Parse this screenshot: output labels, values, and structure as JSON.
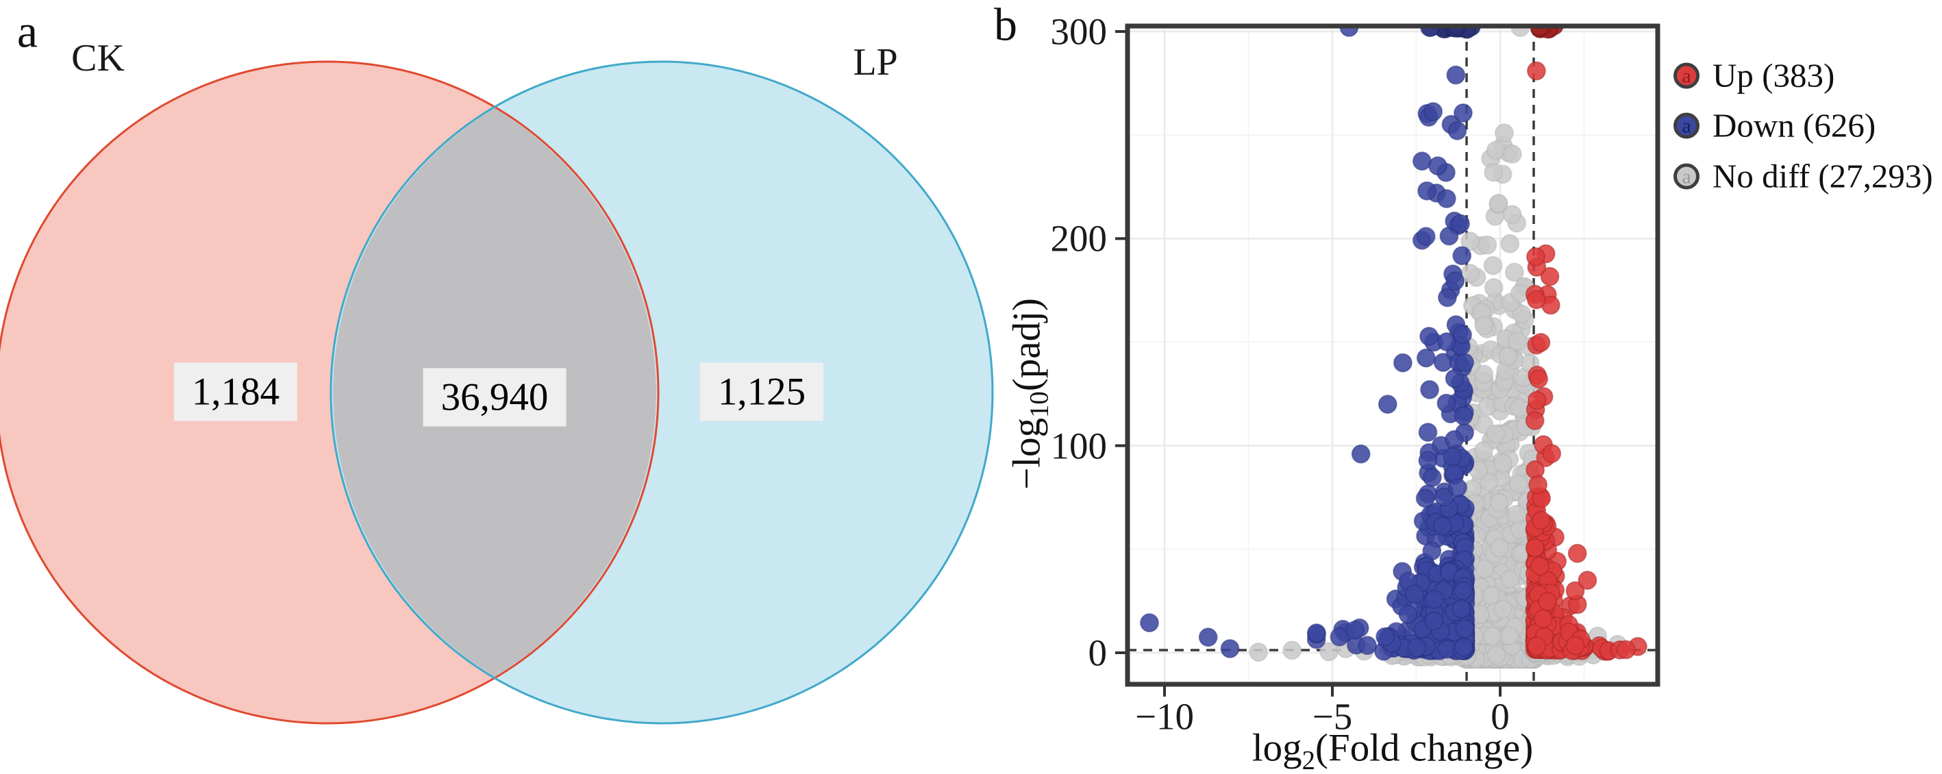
{
  "panels": {
    "a": "a",
    "b": "b"
  },
  "chart_data": [
    {
      "type": "venn",
      "sets": [
        {
          "label": "CK",
          "unique": "1,184"
        },
        {
          "label": "LP",
          "unique": "1,125"
        }
      ],
      "overlap": "36,940",
      "colors": {
        "left_fill": "#f7c7c0",
        "left_stroke": "#e0492f",
        "right_fill": "#c9e8f2",
        "right_stroke": "#41a9ca",
        "overlap_fill": "#bfbfc1",
        "value_box_bg": "#efefef"
      }
    },
    {
      "type": "scatter",
      "subtype": "volcano",
      "xlabel_parts": [
        "log",
        "2",
        "(Fold change)"
      ],
      "ylabel_parts": [
        "−log",
        "10",
        "(padj)"
      ],
      "xlim": [
        -11.1,
        4.7
      ],
      "ylim": [
        -15,
        303
      ],
      "x_ticks": [
        {
          "v": -10,
          "label": "−10"
        },
        {
          "v": -5,
          "label": "−5"
        },
        {
          "v": 0,
          "label": "0"
        }
      ],
      "y_ticks": [
        {
          "v": 0,
          "label": "0"
        },
        {
          "v": 100,
          "label": "100"
        },
        {
          "v": 200,
          "label": "200"
        },
        {
          "v": 300,
          "label": "300"
        }
      ],
      "grid": {
        "x_major": [
          -10,
          -5,
          0
        ],
        "x_minor": [
          -7.5,
          -2.5,
          2.5
        ],
        "y_major": [
          0,
          100,
          200,
          300
        ],
        "y_minor": [
          50,
          150,
          250
        ]
      },
      "thresholds": {
        "vlines": [
          -1,
          1
        ],
        "hline": 1.3
      },
      "legend": [
        {
          "key": "up",
          "label": "Up (383)"
        },
        {
          "key": "down",
          "label": "Down (626)"
        },
        {
          "key": "nodiff",
          "label": "No diff (27,293)"
        }
      ],
      "series_colors": {
        "up": {
          "fill": "#dd3c3c",
          "stroke": "#a32222",
          "legend_a": "#8f1d1d"
        },
        "down": {
          "fill": "#3c47a0",
          "stroke": "#262f7d",
          "legend_a": "#141f5e"
        },
        "nodiff": {
          "fill": "#c9c9c9",
          "stroke": "#b3b3b3",
          "legend_a": "#9b9b9b"
        }
      },
      "points": {
        "seed": 12,
        "radius": 13,
        "clusters": [
          {
            "s": "nodiff",
            "n": 1400,
            "x": [
              -1.03,
              1.03,
              "uni",
              1
            ],
            "y": [
              -3,
              11,
              "lo",
              2.3
            ]
          },
          {
            "s": "nodiff",
            "n": 330,
            "x": [
              -1.0,
              1.0,
              "uni",
              1
            ],
            "y": [
              8,
              130,
              "lo",
              2.0
            ]
          },
          {
            "s": "nodiff",
            "n": 60,
            "x": [
              -0.95,
              0.97,
              "uni",
              1
            ],
            "y": [
              130,
              215,
              "lo",
              1.5
            ]
          },
          {
            "s": "nodiff",
            "n": 8,
            "x": [
              -0.75,
              0.8,
              "uni",
              1
            ],
            "y": [
              215,
              252,
              "uni",
              1
            ]
          },
          {
            "s": "nodiff",
            "n": 60,
            "x": [
              -3.4,
              -1.0,
              "hi",
              2.2
            ],
            "y": [
              -2,
              5,
              "lo",
              1.8
            ]
          },
          {
            "s": "nodiff",
            "n": 40,
            "x": [
              1.0,
              3.0,
              "lo",
              2.2
            ],
            "y": [
              -2,
              5,
              "lo",
              1.8
            ]
          },
          {
            "s": "down",
            "n": 210,
            "x": [
              -2.3,
              -1.03,
              "hi",
              2.2
            ],
            "y": [
              1.5,
              70,
              "lo",
              2.2
            ]
          },
          {
            "s": "down",
            "n": 110,
            "x": [
              -3.3,
              -1.05,
              "hi",
              2.0
            ],
            "y": [
              1,
              40,
              "lo",
              2.0
            ]
          },
          {
            "s": "down",
            "n": 16,
            "x": [
              -5.6,
              -3.2,
              "hi",
              1.3
            ],
            "y": [
              0.5,
              14,
              "lo",
              1.8
            ]
          },
          {
            "s": "down",
            "n": 60,
            "x": [
              -2.3,
              -1.05,
              "hi",
              1.9
            ],
            "y": [
              60,
              155,
              "lo",
              1.5
            ]
          },
          {
            "s": "down",
            "n": 26,
            "x": [
              -2.4,
              -1.1,
              "hi",
              1.8
            ],
            "y": [
              150,
              262,
              "uni",
              1
            ]
          },
          {
            "s": "down",
            "n": 22,
            "x": [
              -1.7,
              -0.85,
              "uni",
              1
            ],
            "y": [
              301,
              303,
              "uni",
              1
            ],
            "fill": "#2c3376",
            "stroke": "#1b2258"
          },
          {
            "s": "down",
            "n": 2,
            "x": [
              -2.1,
              -1.9,
              "uni",
              1
            ],
            "y": [
              301,
              303,
              "uni",
              1
            ],
            "fill": "#343c88",
            "stroke": "#1b2258"
          },
          {
            "s": "up",
            "n": 120,
            "x": [
              1.03,
              1.7,
              "lo",
              2.2
            ],
            "y": [
              1.5,
              65,
              "lo",
              2.2
            ]
          },
          {
            "s": "up",
            "n": 70,
            "x": [
              1.05,
              2.6,
              "lo",
              1.8
            ],
            "y": [
              1,
              30,
              "lo",
              1.9
            ]
          },
          {
            "s": "up",
            "n": 18,
            "x": [
              1.8,
              3.7,
              "lo",
              1.4
            ],
            "y": [
              0.5,
              10,
              "lo",
              1.8
            ]
          },
          {
            "s": "up",
            "n": 30,
            "x": [
              1.03,
              1.55,
              "lo",
              1.9
            ],
            "y": [
              60,
              196,
              "lo",
              1.4
            ]
          },
          {
            "s": "up",
            "n": 9,
            "x": [
              1.15,
              1.75,
              "uni",
              1
            ],
            "y": [
              301,
              303,
              "uni",
              1
            ],
            "fill": "#a02424",
            "stroke": "#6e1212"
          }
        ],
        "outliers": {
          "down": [
            [
              -10.45,
              14.5
            ],
            [
              -8.7,
              7.5
            ],
            [
              -8.05,
              2
            ],
            [
              -4.5,
              302
            ],
            [
              -1.32,
              279
            ],
            [
              -4.15,
              96
            ],
            [
              -3.35,
              120
            ],
            [
              -2.9,
              140
            ]
          ],
          "up": [
            [
              1.08,
              281
            ],
            [
              4.1,
              3
            ],
            [
              3.75,
              1.5
            ],
            [
              2.6,
              35
            ],
            [
              2.3,
              48
            ]
          ],
          "nodiff": [
            [
              -7.2,
              0.3
            ],
            [
              -6.2,
              1.2
            ],
            [
              -5.1,
              0.5
            ],
            [
              -4.6,
              2
            ],
            [
              -4.05,
              0.8
            ],
            [
              3.2,
              1
            ],
            [
              3.5,
              4
            ],
            [
              2.9,
              8
            ],
            [
              0.6,
              302
            ],
            [
              0.12,
              251
            ],
            [
              -0.2,
              232
            ]
          ]
        }
      }
    }
  ]
}
